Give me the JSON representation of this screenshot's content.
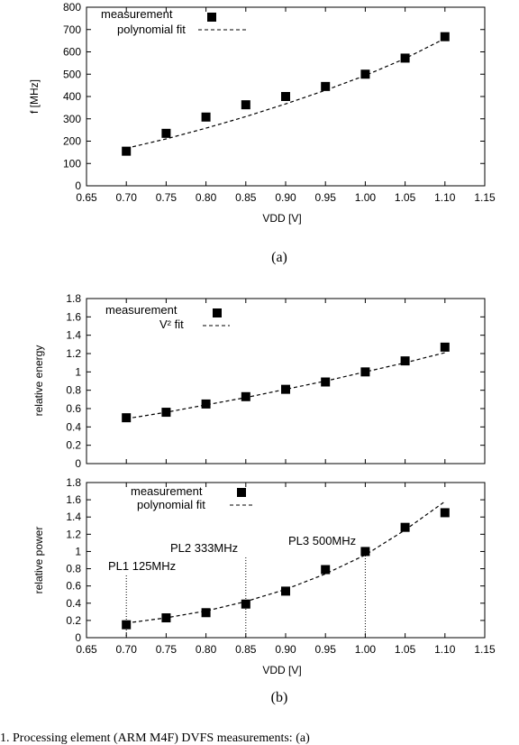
{
  "chart_data": [
    {
      "id": "a",
      "type": "scatter",
      "xlabel": "VDD [V]",
      "ylabel": "f [MHz]",
      "xlim": [
        0.65,
        1.15
      ],
      "ylim": [
        0,
        800
      ],
      "xticks": [
        "0.65",
        "0.70",
        "0.75",
        "0.80",
        "0.85",
        "0.90",
        "0.95",
        "1.00",
        "1.05",
        "1.10",
        "1.15"
      ],
      "yticks": [
        "0",
        "100",
        "200",
        "300",
        "400",
        "500",
        "600",
        "700",
        "800"
      ],
      "legend_position": "top-left",
      "series": [
        {
          "name": "measurement",
          "style": "markers",
          "x": [
            0.7,
            0.75,
            0.8,
            0.85,
            0.9,
            0.95,
            1.0,
            1.05,
            1.1
          ],
          "y": [
            155,
            235,
            308,
            363,
            400,
            445,
            500,
            572,
            668
          ]
        },
        {
          "name": "polynomial fit",
          "style": "dashed",
          "x": [
            0.7,
            0.75,
            0.8,
            0.85,
            0.9,
            0.95,
            1.0,
            1.05,
            1.1
          ],
          "y": [
            168,
            210,
            258,
            310,
            367,
            428,
            494,
            570,
            660
          ]
        }
      ]
    },
    {
      "id": "b-top",
      "type": "scatter",
      "xlabel": "",
      "ylabel": "relative energy",
      "xlim": [
        0.65,
        1.15
      ],
      "ylim": [
        0,
        1.8
      ],
      "yticks": [
        "0",
        "0.2",
        "0.4",
        "0.6",
        "0.8",
        "1",
        "1.2",
        "1.4",
        "1.6",
        "1.8"
      ],
      "legend_position": "top-left",
      "series": [
        {
          "name": "measurement",
          "style": "markers",
          "x": [
            0.7,
            0.75,
            0.8,
            0.85,
            0.9,
            0.95,
            1.0,
            1.05,
            1.1
          ],
          "y": [
            0.5,
            0.56,
            0.65,
            0.73,
            0.81,
            0.89,
            1.0,
            1.12,
            1.27
          ]
        },
        {
          "name": "V² fit",
          "style": "dashed",
          "x": [
            0.7,
            0.75,
            0.8,
            0.85,
            0.9,
            0.95,
            1.0,
            1.05,
            1.1
          ],
          "y": [
            0.49,
            0.56,
            0.64,
            0.72,
            0.81,
            0.9,
            1.0,
            1.1,
            1.21
          ]
        }
      ]
    },
    {
      "id": "b-bottom",
      "type": "scatter",
      "xlabel": "VDD [V]",
      "ylabel": "relative power",
      "xlim": [
        0.65,
        1.15
      ],
      "ylim": [
        0,
        1.8
      ],
      "xticks": [
        "0.65",
        "0.70",
        "0.75",
        "0.80",
        "0.85",
        "0.90",
        "0.95",
        "1.00",
        "1.05",
        "1.10",
        "1.15"
      ],
      "yticks": [
        "0",
        "0.2",
        "0.4",
        "0.6",
        "0.8",
        "1",
        "1.2",
        "1.4",
        "1.6",
        "1.8"
      ],
      "legend_position": "top-right",
      "series": [
        {
          "name": "measurement",
          "style": "markers",
          "x": [
            0.7,
            0.75,
            0.8,
            0.85,
            0.9,
            0.95,
            1.0,
            1.05,
            1.1
          ],
          "y": [
            0.15,
            0.23,
            0.29,
            0.39,
            0.54,
            0.79,
            1.0,
            1.28,
            1.45
          ]
        },
        {
          "name": "polynomial fit",
          "style": "dashed",
          "x": [
            0.7,
            0.75,
            0.8,
            0.85,
            0.9,
            0.95,
            1.0,
            1.05,
            1.1
          ],
          "y": [
            0.17,
            0.23,
            0.31,
            0.42,
            0.56,
            0.74,
            0.96,
            1.25,
            1.58
          ]
        }
      ],
      "annotations": [
        {
          "text": "PL1 125MHz",
          "x": 0.7
        },
        {
          "text": "PL2 333MHz",
          "x": 0.85
        },
        {
          "text": "PL3 500MHz",
          "x": 1.0
        }
      ]
    }
  ],
  "captions": {
    "a": "(a)",
    "b": "(b)"
  },
  "footer_text": "1.   Processing element (ARM M4F) DVFS measurements: (a)"
}
